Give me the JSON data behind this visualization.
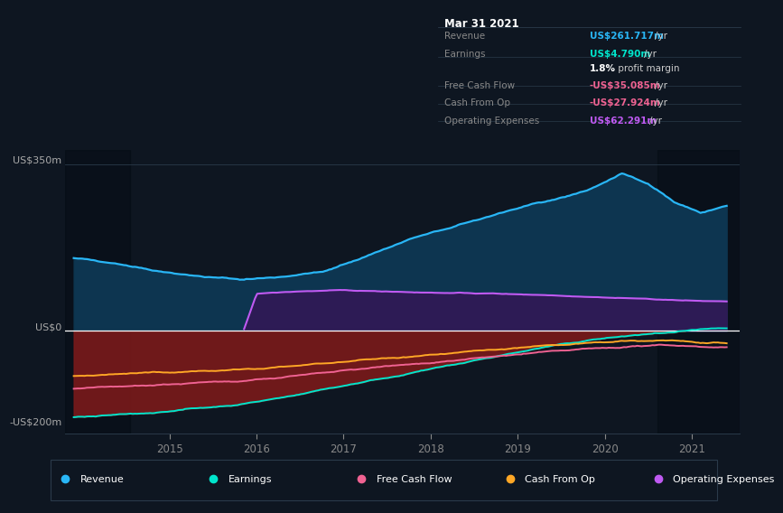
{
  "bg_color": "#0e1621",
  "plot_bg_color": "#0e1621",
  "ylabel_top": "US$350m",
  "ylabel_zero": "US$0",
  "ylabel_bottom": "-US$200m",
  "ylim": [
    -215,
    380
  ],
  "xlim_start": 2013.8,
  "xlim_end": 2021.55,
  "xticks": [
    2015,
    2016,
    2017,
    2018,
    2019,
    2020,
    2021
  ],
  "colors": {
    "revenue": "#29b6f6",
    "earnings": "#00e5cc",
    "free_cash_flow": "#f06292",
    "cash_from_op": "#ffa726",
    "operating_expenses": "#bf5af2",
    "revenue_fill": "#0d3550",
    "op_exp_fill": "#2d1b55",
    "negative_fill": "#7a1a1a"
  },
  "tooltip": {
    "title": "Mar 31 2021",
    "rows": [
      {
        "label": "Revenue",
        "value": "US$261.717m",
        "unit": "/yr",
        "value_color": "#29b6f6"
      },
      {
        "label": "Earnings",
        "value": "US$4.790m",
        "unit": "/yr",
        "value_color": "#00e5cc"
      },
      {
        "label": "",
        "value": "1.8%",
        "unit": " profit margin",
        "value_color": "#ffffff"
      },
      {
        "label": "Free Cash Flow",
        "value": "-US$35.085m",
        "unit": "/yr",
        "value_color": "#f06292"
      },
      {
        "label": "Cash From Op",
        "value": "-US$27.924m",
        "unit": "/yr",
        "value_color": "#f06292"
      },
      {
        "label": "Operating Expenses",
        "value": "US$62.291m",
        "unit": "/yr",
        "value_color": "#bf5af2"
      }
    ]
  },
  "legend": [
    {
      "label": "Revenue",
      "color": "#29b6f6"
    },
    {
      "label": "Earnings",
      "color": "#00e5cc"
    },
    {
      "label": "Free Cash Flow",
      "color": "#f06292"
    },
    {
      "label": "Cash From Op",
      "color": "#ffa726"
    },
    {
      "label": "Operating Expenses",
      "color": "#bf5af2"
    }
  ]
}
